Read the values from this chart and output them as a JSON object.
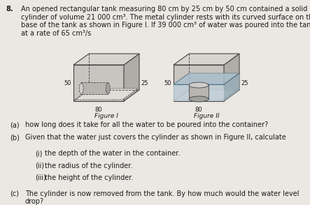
{
  "question_number": "8.",
  "intro_line1": "An opened rectangular tank measuring 80 cm by 25 cm by 50 cm contained a solid metal",
  "intro_line2": "cylinder of volume 21 000 cm³. The metal cylinder rests with its curved surface on the",
  "intro_line3": "base of the tank as shown in Figure I. If 39 000 cm³ of water was poured into the tank",
  "intro_line4": "at a rate of 65 cm³/s",
  "figure1_label": "Figure I",
  "figure2_label": "Figure II",
  "dim_50_1": "50",
  "dim_80_1": "80",
  "dim_25_1": "25",
  "dim_50_2": "50",
  "dim_80_2": "80",
  "dim_25_2": "25",
  "part_a_prefix": "(a)",
  "part_a_text": "how long does it take for all the water to be poured into the container?",
  "part_b_prefix": "(b)",
  "part_b_text": "Given that the water just covers the cylinder as shown in Figure II, calculate",
  "part_bi_prefix": "(i)",
  "part_bi_text": "the depth of the water in the container.",
  "part_bii_prefix": "(ii)",
  "part_bii_text": "the radius of the cylinder.",
  "part_biii_prefix": "(iii)",
  "part_biii_text": "the height of the cylinder.",
  "part_c_prefix": "(c)",
  "part_c_text": "The cylinder is now removed from the tank. By how much would the water level",
  "part_c_text2": "drop?",
  "bg_color": "#ebe8e3",
  "text_color": "#1a1a1a",
  "edge_color": "#444444",
  "face_front": "#c8c4c0",
  "face_right": "#b0aca8",
  "face_top": "#d8d4d0",
  "face_inner": "#e0dcd8",
  "water_front": "#c0cfd8",
  "water_top": "#aabfcc",
  "water_right": "#98adb8",
  "cyl_face": "#b8b4b0",
  "cyl_dark": "#a0a09c"
}
